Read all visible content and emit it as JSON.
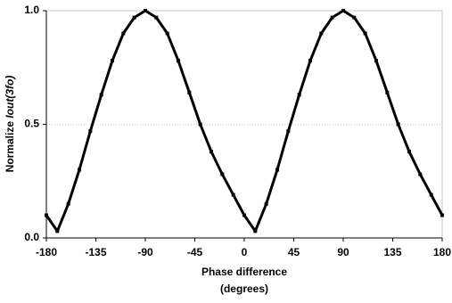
{
  "chart_data": {
    "type": "line",
    "xlabel": [
      "Phase difference",
      "(degrees)"
    ],
    "ylabel": "Normalize ",
    "ylabel_italic": "Iout(3fo)",
    "x": [
      -180,
      -170,
      -160,
      -150,
      -140,
      -130,
      -120,
      -110,
      -100,
      -90,
      -80,
      -70,
      -60,
      -50,
      -40,
      -30,
      -20,
      -10,
      0,
      10,
      20,
      30,
      40,
      50,
      60,
      70,
      80,
      90,
      100,
      110,
      120,
      130,
      140,
      150,
      160,
      170,
      180
    ],
    "values": [
      0.1,
      0.03,
      0.15,
      0.3,
      0.47,
      0.63,
      0.78,
      0.9,
      0.97,
      1.0,
      0.97,
      0.9,
      0.78,
      0.64,
      0.5,
      0.38,
      0.28,
      0.19,
      0.1,
      0.03,
      0.15,
      0.3,
      0.47,
      0.63,
      0.78,
      0.9,
      0.97,
      1.0,
      0.97,
      0.9,
      0.78,
      0.64,
      0.5,
      0.38,
      0.28,
      0.19,
      0.1
    ],
    "color": "#000000",
    "xlim": [
      -180,
      180
    ],
    "xticks": [
      -180,
      -135,
      -90,
      -45,
      0,
      45,
      90,
      135,
      180
    ],
    "ylim": [
      0,
      1
    ],
    "yticks": [
      {
        "value": 0,
        "label": "0.0"
      },
      0.5,
      {
        "value": 1,
        "label": "1.0"
      }
    ],
    "grid": true
  }
}
